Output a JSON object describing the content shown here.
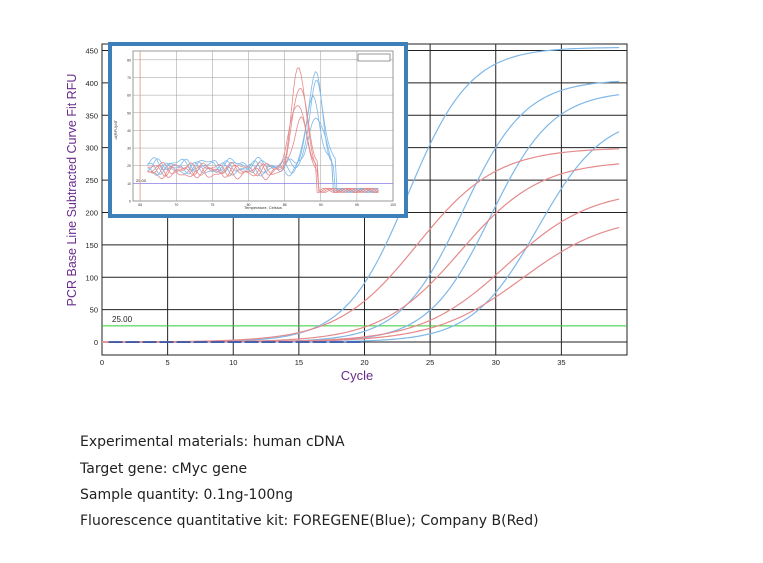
{
  "chart_data": {
    "type": "line",
    "title": "",
    "xlabel": "Cycle",
    "ylabel": "PCR Base Line Subtracted Curve Fit RFU",
    "xlim": [
      0,
      40
    ],
    "ylim": [
      -20,
      460
    ],
    "x_ticks": [
      0,
      5,
      10,
      15,
      20,
      25,
      30,
      35
    ],
    "y_ticks": [
      0,
      50,
      100,
      150,
      200,
      250,
      300,
      350,
      400,
      450
    ],
    "grid": true,
    "threshold": {
      "label": "25.00",
      "value": 25,
      "color": "#33cc33"
    },
    "series_colors": {
      "FOREGENE": "#7fb8e8",
      "Company B": "#e58a8a"
    },
    "amplification_curves": [
      {
        "group": "FOREGENE",
        "plateau": 455,
        "midpoint_cycle": 23.3,
        "steepness": 0.42
      },
      {
        "group": "FOREGENE",
        "plateau": 405,
        "midpoint_cycle": 27.5,
        "steepness": 0.42
      },
      {
        "group": "FOREGENE",
        "plateau": 388,
        "midpoint_cycle": 29.6,
        "steepness": 0.42
      },
      {
        "group": "FOREGENE",
        "plateau": 352,
        "midpoint_cycle": 33.2,
        "steepness": 0.4
      },
      {
        "group": "Company B",
        "plateau": 300,
        "midpoint_cycle": 24.0,
        "steepness": 0.33
      },
      {
        "group": "Company B",
        "plateau": 280,
        "midpoint_cycle": 27.3,
        "steepness": 0.33
      },
      {
        "group": "Company B",
        "plateau": 236,
        "midpoint_cycle": 30.8,
        "steepness": 0.31
      },
      {
        "group": "Company B",
        "plateau": 196,
        "midpoint_cycle": 32.0,
        "steepness": 0.3
      }
    ],
    "inset": {
      "type": "line",
      "xlabel": "Temperature, Celsius",
      "ylabel": "-d(RFU)/dT",
      "threshold_label": "25.00",
      "x_ticks": [
        65,
        70,
        75,
        80,
        85,
        90,
        95,
        100
      ],
      "y_ticks": [
        0,
        10,
        20,
        30,
        40,
        50,
        60,
        70,
        80
      ],
      "xlim": [
        64,
        100
      ],
      "ylim": [
        0,
        85
      ],
      "melt_peaks": [
        {
          "group": "FOREGENE",
          "peak_temp": 89.2,
          "peak_height": 71,
          "baseline": 20
        },
        {
          "group": "FOREGENE",
          "peak_temp": 89.5,
          "peak_height": 66,
          "baseline": 21
        },
        {
          "group": "FOREGENE",
          "peak_temp": 89.0,
          "peak_height": 58,
          "baseline": 19
        },
        {
          "group": "FOREGENE",
          "peak_temp": 89.4,
          "peak_height": 50,
          "baseline": 18
        },
        {
          "group": "Company B",
          "peak_temp": 87.0,
          "peak_height": 74,
          "baseline": 18
        },
        {
          "group": "Company B",
          "peak_temp": 87.2,
          "peak_height": 67,
          "baseline": 17
        },
        {
          "group": "Company B",
          "peak_temp": 86.8,
          "peak_height": 58,
          "baseline": 18
        },
        {
          "group": "Company B",
          "peak_temp": 87.1,
          "peak_height": 46,
          "baseline": 16
        }
      ]
    }
  },
  "captions": {
    "materials": "Experimental materials: human cDNA",
    "target": "Target gene: cMyc gene",
    "quantity": "Sample quantity: 0.1ng-100ng",
    "kit": "Fluorescence quantitative kit: FOREGENE(Blue); Company B(Red)"
  }
}
